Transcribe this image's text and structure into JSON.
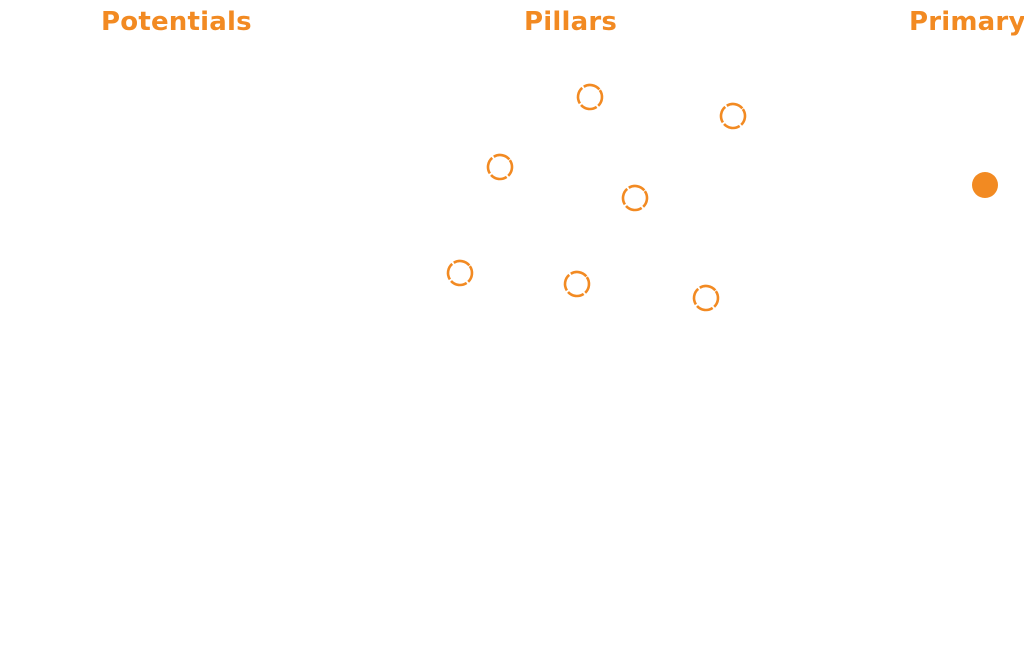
{
  "theme": {
    "accent_color": "#F28A22",
    "background_color": "#FFFFFF"
  },
  "columns": {
    "potentials": {
      "label": "Potentials"
    },
    "pillars": {
      "label": "Pillars"
    },
    "primary": {
      "label": "Primary"
    }
  },
  "nodes": {
    "pillar_node_style": "hollow-ring",
    "primary_node_style": "filled-circle",
    "pillar_count": 7,
    "primary_count": 1
  }
}
